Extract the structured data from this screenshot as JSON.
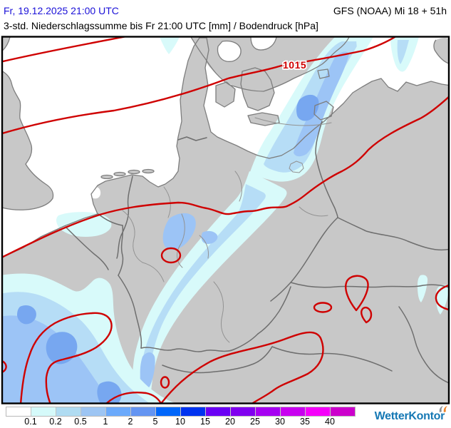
{
  "header": {
    "datetime": "Fr, 19.12.2025 21:00 UTC",
    "model_run": "GFS (NOAA) Mi 18 + 51h",
    "subtitle": "3-std. Niederschlagssumme bis Fr 21:00 UTC [mm] / Bodendruck [hPa]"
  },
  "map": {
    "isobar_label": "1015"
  },
  "legend": {
    "unit": "mm",
    "values": [
      "0.1",
      "0.2",
      "0.5",
      "1",
      "2",
      "5",
      "10",
      "15",
      "20",
      "25",
      "30",
      "35",
      "40"
    ],
    "swatches": [
      "#ffffff",
      "#d5fafa",
      "#b0dcf2",
      "#9dc5f3",
      "#6aa9fb",
      "#6495f2",
      "#0066fa",
      "#0033f0",
      "#6a00f5",
      "#8000f0",
      "#a600f2",
      "#c800f0",
      "#f500fa",
      "#cc00cc"
    ]
  },
  "branding": {
    "logo_text": "WetterKontor"
  },
  "colors": {
    "header_blue": "#1a10d8",
    "sea": "#ffffff",
    "land": "#c8c8c8",
    "coast": "#7d7d7d",
    "country_border": "#6e6e6e",
    "state_border": "#929292",
    "isobar": "#cf0000",
    "precip_1": "#d8fafa",
    "precip_2": "#b6ddf6",
    "precip_3": "#9cc4f6",
    "precip_4": "#77a7f0",
    "logo_blue": "#1578b4",
    "logo_orange": "#f08428",
    "logo_gray": "#8a9096"
  }
}
